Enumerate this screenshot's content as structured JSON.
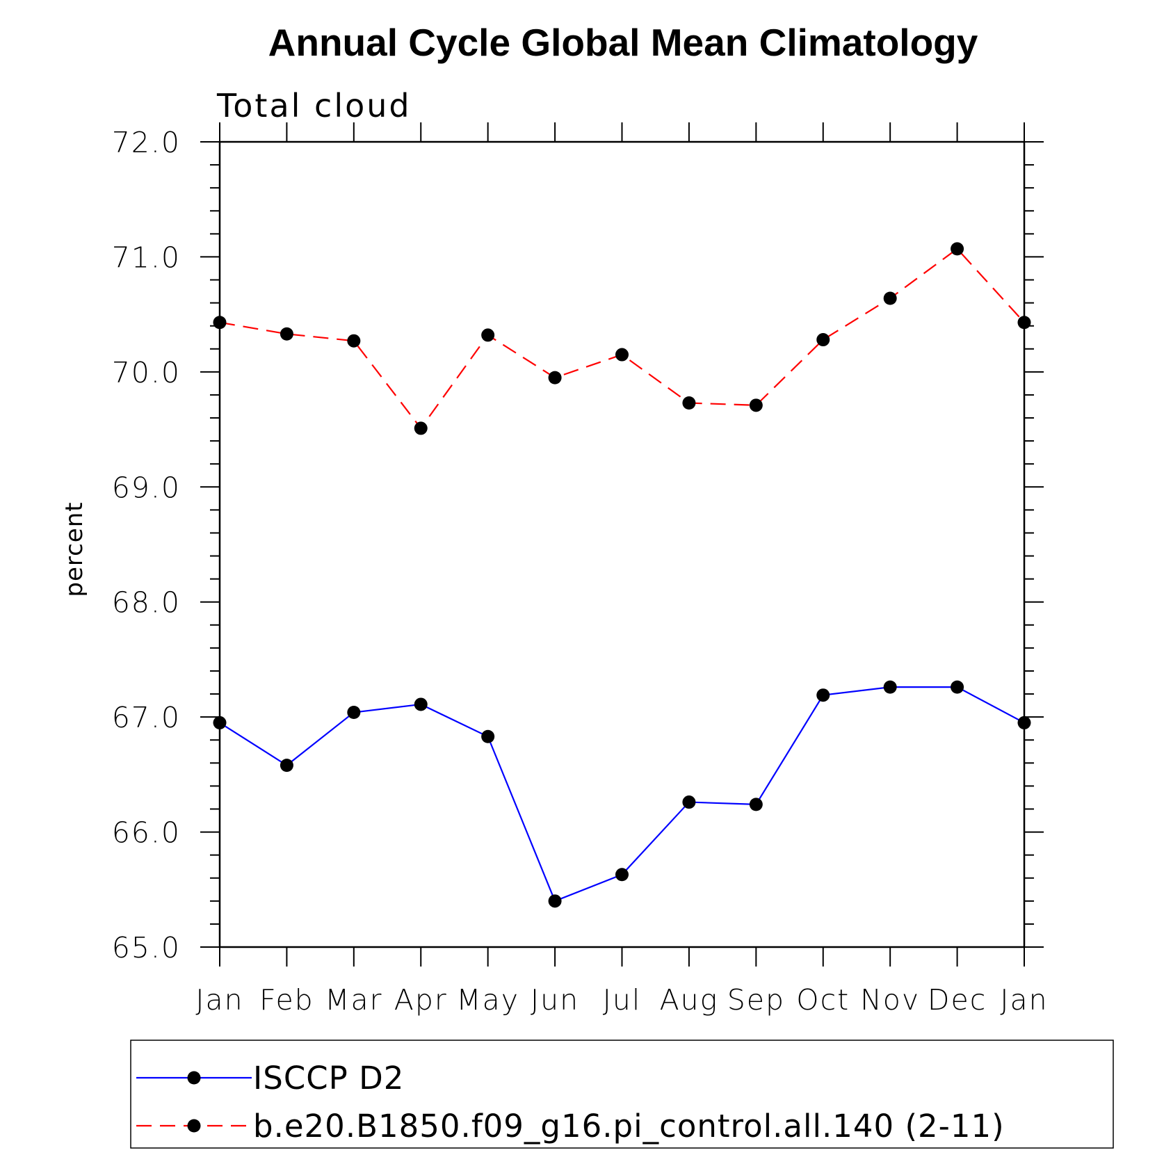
{
  "chart_data": {
    "type": "line",
    "title": "Annual Cycle Global Mean Climatology",
    "subtitle": "Total cloud",
    "ylabel": "percent",
    "ylim": [
      65.0,
      72.0
    ],
    "yticks": [
      "65.0",
      "66.0",
      "67.0",
      "68.0",
      "69.0",
      "70.0",
      "71.0",
      "72.0"
    ],
    "categories": [
      "Jan",
      "Feb",
      "Mar",
      "Apr",
      "May",
      "Jun",
      "Jul",
      "Aug",
      "Sep",
      "Oct",
      "Nov",
      "Dec",
      "Jan"
    ],
    "legend_position": "bottom",
    "series": [
      {
        "name": "ISCCP D2",
        "color": "#0000ff",
        "dash": "solid",
        "marker": "filled-circle",
        "values": [
          66.95,
          66.58,
          67.04,
          67.11,
          66.83,
          65.4,
          65.63,
          66.26,
          66.24,
          67.19,
          67.26,
          67.26,
          66.95
        ]
      },
      {
        "name": "b.e20.B1850.f09_g16.pi_control.all.140 (2-11)",
        "color": "#ff0000",
        "dash": "dashed",
        "marker": "filled-circle",
        "values": [
          70.43,
          70.33,
          70.27,
          69.51,
          70.32,
          69.95,
          70.15,
          69.73,
          69.71,
          70.28,
          70.64,
          71.07,
          70.43
        ]
      }
    ]
  }
}
